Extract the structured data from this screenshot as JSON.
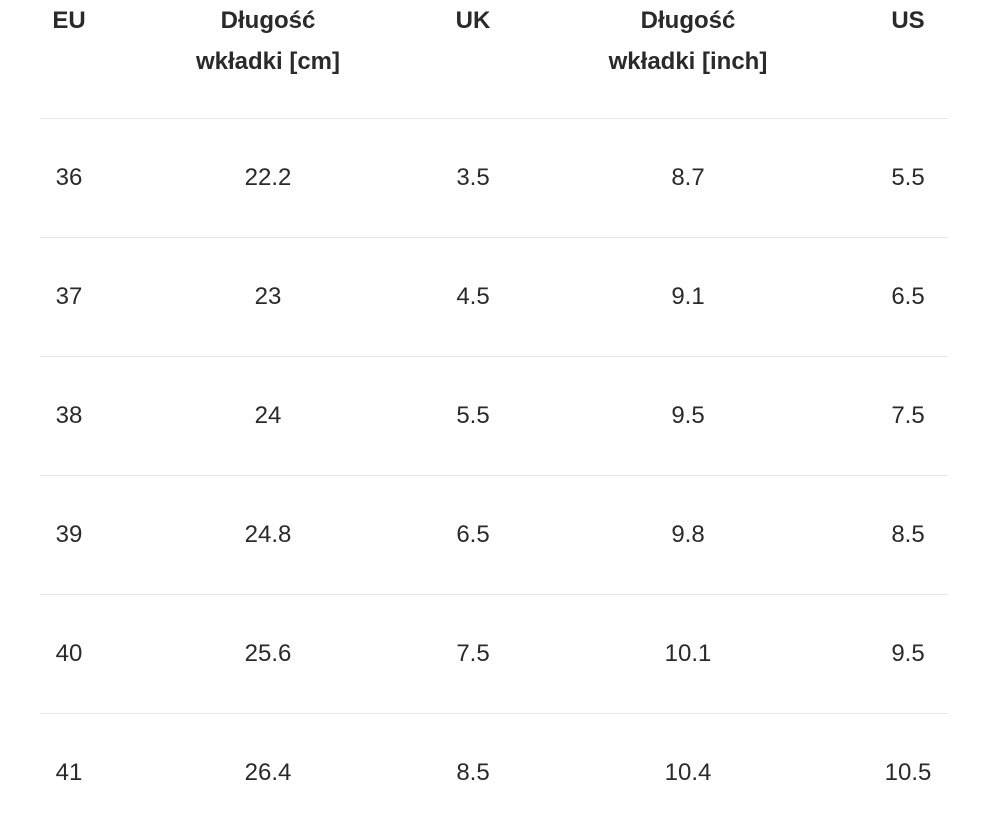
{
  "table": {
    "headers": {
      "eu": "EU",
      "length_cm_line1": "Długość",
      "length_cm_line2": "wkładki [cm]",
      "uk": "UK",
      "length_inch_line1": "Długość",
      "length_inch_line2": "wkładki [inch]",
      "us": "US"
    },
    "rows": [
      {
        "eu": "36",
        "cm": "22.2",
        "uk": "3.5",
        "inch": "8.7",
        "us": "5.5"
      },
      {
        "eu": "37",
        "cm": "23",
        "uk": "4.5",
        "inch": "9.1",
        "us": "6.5"
      },
      {
        "eu": "38",
        "cm": "24",
        "uk": "5.5",
        "inch": "9.5",
        "us": "7.5"
      },
      {
        "eu": "39",
        "cm": "24.8",
        "uk": "6.5",
        "inch": "9.8",
        "us": "8.5"
      },
      {
        "eu": "40",
        "cm": "25.6",
        "uk": "7.5",
        "inch": "10.1",
        "us": "9.5"
      },
      {
        "eu": "41",
        "cm": "26.4",
        "uk": "8.5",
        "inch": "10.4",
        "us": "10.5"
      }
    ]
  }
}
